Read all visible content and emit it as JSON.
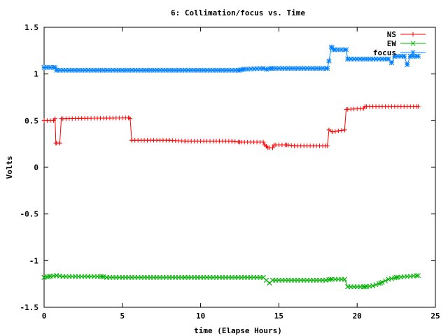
{
  "chart_data": {
    "type": "line",
    "title": "6: Collimation/focus vs. Time",
    "xlabel": "time (Elapse Hours)",
    "ylabel": "Volts",
    "xlim": [
      0,
      25
    ],
    "ylim": [
      -1.5,
      1.5
    ],
    "xticks": [
      0,
      5,
      10,
      15,
      20,
      25
    ],
    "xtick_labels": [
      "0",
      "5",
      "10",
      "15",
      "20",
      "25"
    ],
    "yticks": [
      -1.5,
      -1,
      -0.5,
      0,
      0.5,
      1,
      1.5
    ],
    "ytick_labels": [
      "-1.5",
      "-1",
      "-0.5",
      "0",
      "0.5",
      "1",
      "1.5"
    ],
    "grid": false,
    "legend_position": "top-right",
    "series": [
      {
        "name": "NS",
        "color": "#ff0000",
        "marker": "plus",
        "points": [
          [
            0.0,
            0.5
          ],
          [
            0.6,
            0.5
          ],
          [
            0.7,
            0.52
          ],
          [
            0.75,
            0.26
          ],
          [
            1.0,
            0.26
          ],
          [
            1.1,
            0.52
          ],
          [
            5.4,
            0.53
          ],
          [
            5.5,
            0.52
          ],
          [
            5.6,
            0.29
          ],
          [
            8.0,
            0.29
          ],
          [
            9.0,
            0.28
          ],
          [
            12.0,
            0.28
          ],
          [
            12.5,
            0.27
          ],
          [
            14.0,
            0.27
          ],
          [
            14.1,
            0.24
          ],
          [
            14.3,
            0.21
          ],
          [
            14.6,
            0.21
          ],
          [
            14.7,
            0.24
          ],
          [
            15.5,
            0.24
          ],
          [
            16.0,
            0.23
          ],
          [
            18.1,
            0.23
          ],
          [
            18.2,
            0.4
          ],
          [
            18.4,
            0.38
          ],
          [
            19.2,
            0.4
          ],
          [
            19.3,
            0.62
          ],
          [
            20.4,
            0.63
          ],
          [
            20.5,
            0.65
          ],
          [
            23.9,
            0.65
          ]
        ]
      },
      {
        "name": "EW",
        "color": "#00b000",
        "marker": "cross",
        "points": [
          [
            0.0,
            -1.18
          ],
          [
            0.3,
            -1.17
          ],
          [
            0.8,
            -1.16
          ],
          [
            1.2,
            -1.17
          ],
          [
            3.7,
            -1.17
          ],
          [
            4.0,
            -1.18
          ],
          [
            9.0,
            -1.18
          ],
          [
            14.0,
            -1.18
          ],
          [
            14.2,
            -1.21
          ],
          [
            14.4,
            -1.24
          ],
          [
            14.6,
            -1.21
          ],
          [
            18.0,
            -1.21
          ],
          [
            18.3,
            -1.2
          ],
          [
            19.2,
            -1.2
          ],
          [
            19.4,
            -1.28
          ],
          [
            20.5,
            -1.28
          ],
          [
            21.0,
            -1.27
          ],
          [
            21.5,
            -1.24
          ],
          [
            22.0,
            -1.2
          ],
          [
            22.5,
            -1.18
          ],
          [
            23.9,
            -1.16
          ]
        ]
      },
      {
        "name": "focus",
        "color": "#0080ff",
        "marker": "star",
        "points": [
          [
            0.0,
            1.07
          ],
          [
            0.7,
            1.07
          ],
          [
            0.8,
            1.04
          ],
          [
            12.5,
            1.04
          ],
          [
            12.7,
            1.05
          ],
          [
            14.0,
            1.06
          ],
          [
            14.2,
            1.05
          ],
          [
            14.5,
            1.06
          ],
          [
            18.1,
            1.06
          ],
          [
            18.2,
            1.14
          ],
          [
            18.35,
            1.29
          ],
          [
            18.5,
            1.26
          ],
          [
            19.3,
            1.26
          ],
          [
            19.4,
            1.16
          ],
          [
            22.0,
            1.16
          ],
          [
            22.2,
            1.12
          ],
          [
            22.4,
            1.19
          ],
          [
            23.0,
            1.19
          ],
          [
            23.2,
            1.1
          ],
          [
            23.4,
            1.19
          ],
          [
            23.9,
            1.19
          ]
        ]
      }
    ]
  }
}
